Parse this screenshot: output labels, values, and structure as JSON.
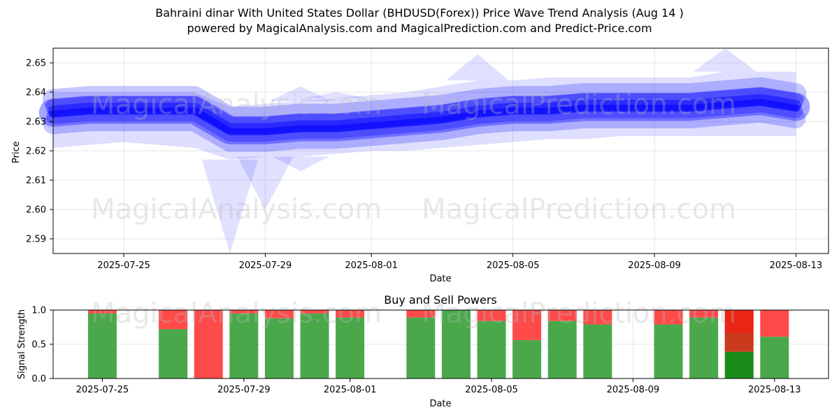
{
  "title": "Bahraini dinar With United States Dollar (BHDUSD(Forex)) Price Wave Trend Analysis (Aug 14 )",
  "subtitle": "powered by MagicalAnalysis.com and MagicalPrediction.com and Predict-Price.com",
  "watermarks": [
    "MagicalAnalysis.com",
    "MagicalPrediction.com"
  ],
  "colors": {
    "wave": "#0000ff",
    "buy": "#4aa84a",
    "sell": "#ff4a4a",
    "strong_buy": "#1a8c1a",
    "strong_sell": "#e61e0a"
  },
  "chart_data": [
    {
      "type": "area",
      "xlabel": "Date",
      "ylabel": "Price",
      "xlim": [
        "2025-07-22",
        "2025-08-14"
      ],
      "ylim": [
        2.585,
        2.655
      ],
      "x_ticks": [
        "2025-07-25",
        "2025-07-29",
        "2025-08-01",
        "2025-08-05",
        "2025-08-09",
        "2025-08-13"
      ],
      "y_ticks": [
        "2.59",
        "2.60",
        "2.61",
        "2.62",
        "2.63",
        "2.64",
        "2.65"
      ],
      "grid": true,
      "dates": [
        "2025-07-23",
        "2025-07-24",
        "2025-07-25",
        "2025-07-26",
        "2025-07-27",
        "2025-07-28",
        "2025-07-29",
        "2025-07-30",
        "2025-07-31",
        "2025-08-01",
        "2025-08-02",
        "2025-08-03",
        "2025-08-04",
        "2025-08-05",
        "2025-08-06",
        "2025-08-07",
        "2025-08-08",
        "2025-08-09",
        "2025-08-10",
        "2025-08-11",
        "2025-08-12",
        "2025-08-13"
      ],
      "wave_center": [
        2.633,
        2.634,
        2.634,
        2.634,
        2.634,
        2.627,
        2.627,
        2.628,
        2.628,
        2.629,
        2.63,
        2.631,
        2.633,
        2.634,
        2.634,
        2.635,
        2.635,
        2.635,
        2.635,
        2.636,
        2.637,
        2.635
      ],
      "wave_upper": [
        2.64,
        2.64,
        2.64,
        2.64,
        2.64,
        2.635,
        2.636,
        2.637,
        2.638,
        2.639,
        2.64,
        2.642,
        2.644,
        2.644,
        2.645,
        2.645,
        2.645,
        2.645,
        2.645,
        2.647,
        2.647,
        2.647
      ],
      "wave_lower": [
        2.621,
        2.622,
        2.623,
        2.622,
        2.621,
        2.617,
        2.618,
        2.618,
        2.619,
        2.62,
        2.62,
        2.621,
        2.622,
        2.623,
        2.624,
        2.624,
        2.625,
        2.625,
        2.625,
        2.625,
        2.625,
        2.625
      ],
      "spike_high": [
        null,
        null,
        null,
        null,
        null,
        null,
        null,
        2.642,
        2.64,
        null,
        null,
        null,
        2.653,
        null,
        null,
        null,
        null,
        null,
        null,
        2.655,
        null,
        null
      ],
      "spike_low": [
        null,
        null,
        null,
        null,
        null,
        2.585,
        2.6,
        2.613,
        null,
        null,
        null,
        null,
        null,
        null,
        null,
        null,
        null,
        null,
        null,
        null,
        null,
        null
      ]
    },
    {
      "type": "bar",
      "title": "Buy and Sell Powers",
      "xlabel": "Date",
      "ylabel": "Signal Strength",
      "ylim": [
        0,
        1.0
      ],
      "y_ticks": [
        "0.0",
        "0.5",
        "1.0"
      ],
      "x_ticks": [
        "2025-07-25",
        "2025-07-29",
        "2025-08-01",
        "2025-08-05",
        "2025-08-09",
        "2025-08-13"
      ],
      "grid": true,
      "dates": [
        "2025-07-25",
        "2025-07-27",
        "2025-07-28",
        "2025-07-29",
        "2025-07-30",
        "2025-07-31",
        "2025-08-01",
        "2025-08-03",
        "2025-08-04",
        "2025-08-05",
        "2025-08-06",
        "2025-08-07",
        "2025-08-08",
        "2025-08-10",
        "2025-08-11",
        "2025-08-12",
        "2025-08-13"
      ],
      "buy": [
        0.95,
        0.72,
        0.0,
        0.95,
        0.88,
        0.95,
        0.89,
        0.89,
        1.0,
        0.84,
        0.56,
        0.84,
        0.79,
        0.79,
        0.89,
        0.39,
        0.61
      ],
      "strong_buy": [
        0,
        0,
        0,
        0,
        0,
        0,
        0,
        0,
        0,
        0,
        0,
        0,
        0,
        0,
        0,
        0.39,
        0
      ],
      "strong_sell": [
        0,
        0,
        0,
        0,
        0,
        0,
        0,
        0,
        0,
        0,
        0,
        0,
        0,
        0,
        0,
        0.33,
        0
      ]
    }
  ]
}
